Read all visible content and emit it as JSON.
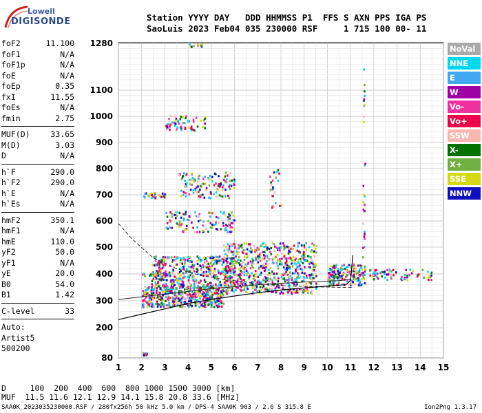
{
  "logo": {
    "line1": "Lowell",
    "line2": "DIGISONDE"
  },
  "header": {
    "line1": "Station YYYY DAY   DDD HHMMSS P1  FFS S AXN PPS IGA PS",
    "line2": "SaoLuis 2023 Feb04 035 230000 RSF     1 715 100 00- 11"
  },
  "params": [
    {
      "k": "foF2",
      "v": "11.100"
    },
    {
      "k": "foF1",
      "v": "N/A"
    },
    {
      "k": "foF1p",
      "v": "N/A"
    },
    {
      "k": "foE",
      "v": "N/A"
    },
    {
      "k": "foEp",
      "v": "0.35"
    },
    {
      "k": "fxI",
      "v": "11.55"
    },
    {
      "k": "foEs",
      "v": "N/A"
    },
    {
      "k": "fmin",
      "v": "2.75"
    },
    {
      "sep": true
    },
    {
      "k": "MUF(D)",
      "v": "33.65"
    },
    {
      "k": "M(D)",
      "v": "3.03"
    },
    {
      "k": "D",
      "v": "N/A"
    },
    {
      "sep": true
    },
    {
      "k": "h`F",
      "v": "290.0"
    },
    {
      "k": "h`F2",
      "v": "290.0"
    },
    {
      "k": "h`E",
      "v": "N/A"
    },
    {
      "k": "h`Es",
      "v": "N/A"
    },
    {
      "sep": true
    },
    {
      "k": "hmF2",
      "v": "350.1"
    },
    {
      "k": "hmF1",
      "v": "N/A"
    },
    {
      "k": "hmE",
      "v": "110.0"
    },
    {
      "k": "yF2",
      "v": "50.0"
    },
    {
      "k": "yF1",
      "v": "N/A"
    },
    {
      "k": "yE",
      "v": "20.0"
    },
    {
      "k": "B0",
      "v": "54.0"
    },
    {
      "k": "B1",
      "v": "1.42"
    },
    {
      "sep": true
    },
    {
      "k": "C-level",
      "v": "33"
    },
    {
      "sep": true
    },
    {
      "k": "Auto:",
      "v": ""
    },
    {
      "k": "Artist5",
      "v": ""
    },
    {
      "k": "500200",
      "v": ""
    }
  ],
  "legend": [
    {
      "label": "NoVal",
      "color": "#a9a9a9"
    },
    {
      "label": "NNE",
      "color": "#00d8f0"
    },
    {
      "label": "E",
      "color": "#3fa8f0"
    },
    {
      "label": "W",
      "color": "#a000a8"
    },
    {
      "label": "Vo-",
      "color": "#f030a0"
    },
    {
      "label": "Vo+",
      "color": "#f0004a"
    },
    {
      "label": "SSW",
      "color": "#f8b8b0"
    },
    {
      "label": "X-",
      "color": "#007000"
    },
    {
      "label": "X+",
      "color": "#70b040"
    },
    {
      "label": "SSE",
      "color": "#d8d810"
    },
    {
      "label": "NNW",
      "color": "#1010c0"
    }
  ],
  "footer": {
    "line1": "D     100  200  400  600  800 1000 1500 3000 [km]",
    "line2": "MUF  11.5 11.6 12.1 12.9 14.1 15.8 20.8 33.6 [MHz]",
    "status": "SAA0K_2023035230000.RSF / 280fx256h 50 kHz 5.0 km / DPS-4 SAA0K 903 / 2.6 S 315.8 E",
    "version": "Ion2Png 1.3.17"
  },
  "chart_data": {
    "type": "scatter",
    "x_ticks": [
      "1",
      "2",
      "3",
      "4",
      "5",
      "6",
      "7",
      "8",
      "9",
      "10",
      "11",
      "12",
      "13",
      "14",
      "15"
    ],
    "y_ticks": [
      "80",
      "200",
      "300",
      "400",
      "500",
      "600",
      "700",
      "800",
      "900",
      "1000",
      "1100",
      "1280"
    ],
    "y_tick_values": [
      80,
      200,
      300,
      400,
      500,
      600,
      700,
      800,
      900,
      1000,
      1100,
      1280
    ],
    "xlim": [
      1,
      15
    ],
    "ylim": [
      80,
      1280
    ],
    "grid": true,
    "y_scale": "nonlinear",
    "echo_clusters": [
      {
        "x0": 2.0,
        "x1": 2.2,
        "y0": 90,
        "y1": 105,
        "density": 10
      },
      {
        "x0": 2.0,
        "x1": 5.5,
        "y0": 280,
        "y1": 360,
        "density": 500
      },
      {
        "x0": 2.4,
        "x1": 6.0,
        "y0": 350,
        "y1": 470,
        "density": 450
      },
      {
        "x0": 5.5,
        "x1": 9.5,
        "y0": 330,
        "y1": 520,
        "density": 650
      },
      {
        "x0": 10.0,
        "x1": 11.6,
        "y0": 360,
        "y1": 440,
        "density": 180
      },
      {
        "x0": 11.8,
        "x1": 14.5,
        "y0": 380,
        "y1": 420,
        "density": 70
      },
      {
        "x0": 2.0,
        "x1": 3.2,
        "y0": 395,
        "y1": 410,
        "density": 40
      },
      {
        "x0": 2.0,
        "x1": 3.0,
        "y0": 690,
        "y1": 710,
        "density": 30
      },
      {
        "x0": 3.0,
        "x1": 6.0,
        "y0": 560,
        "y1": 640,
        "density": 120
      },
      {
        "x0": 3.5,
        "x1": 6.0,
        "y0": 690,
        "y1": 790,
        "density": 120
      },
      {
        "x0": 3.0,
        "x1": 4.8,
        "y0": 950,
        "y1": 1010,
        "density": 60
      },
      {
        "x0": 4.0,
        "x1": 4.6,
        "y0": 1270,
        "y1": 1280,
        "density": 10
      },
      {
        "x0": 7.5,
        "x1": 8.0,
        "y0": 650,
        "y1": 800,
        "density": 25
      },
      {
        "x0": 11.5,
        "x1": 11.6,
        "y0": 450,
        "y1": 1200,
        "density": 30
      }
    ],
    "profile_curve": [
      [
        1.0,
        230
      ],
      [
        2.0,
        250
      ],
      [
        3.0,
        270
      ],
      [
        4.0,
        290
      ],
      [
        5.0,
        305
      ],
      [
        6.0,
        318
      ],
      [
        7.0,
        330
      ],
      [
        8.0,
        340
      ],
      [
        9.0,
        348
      ],
      [
        10.0,
        355
      ],
      [
        10.8,
        360
      ],
      [
        11.0,
        375
      ],
      [
        11.1,
        470
      ]
    ],
    "secondary_trace": [
      [
        1.0,
        305
      ],
      [
        3.0,
        325
      ],
      [
        5.0,
        345
      ],
      [
        7.0,
        360
      ],
      [
        9.0,
        370
      ],
      [
        10.5,
        375
      ],
      [
        11.0,
        380
      ]
    ],
    "dashed_curve": [
      [
        1.0,
        590
      ],
      [
        1.6,
        530
      ],
      [
        2.5,
        460
      ],
      [
        3.5,
        420
      ],
      [
        4.5,
        395
      ],
      [
        5.5,
        380
      ],
      [
        6.5,
        370
      ],
      [
        7.5,
        360
      ],
      [
        8.5,
        355
      ],
      [
        9.5,
        352
      ],
      [
        10.5,
        350
      ],
      [
        11.1,
        350
      ]
    ]
  }
}
